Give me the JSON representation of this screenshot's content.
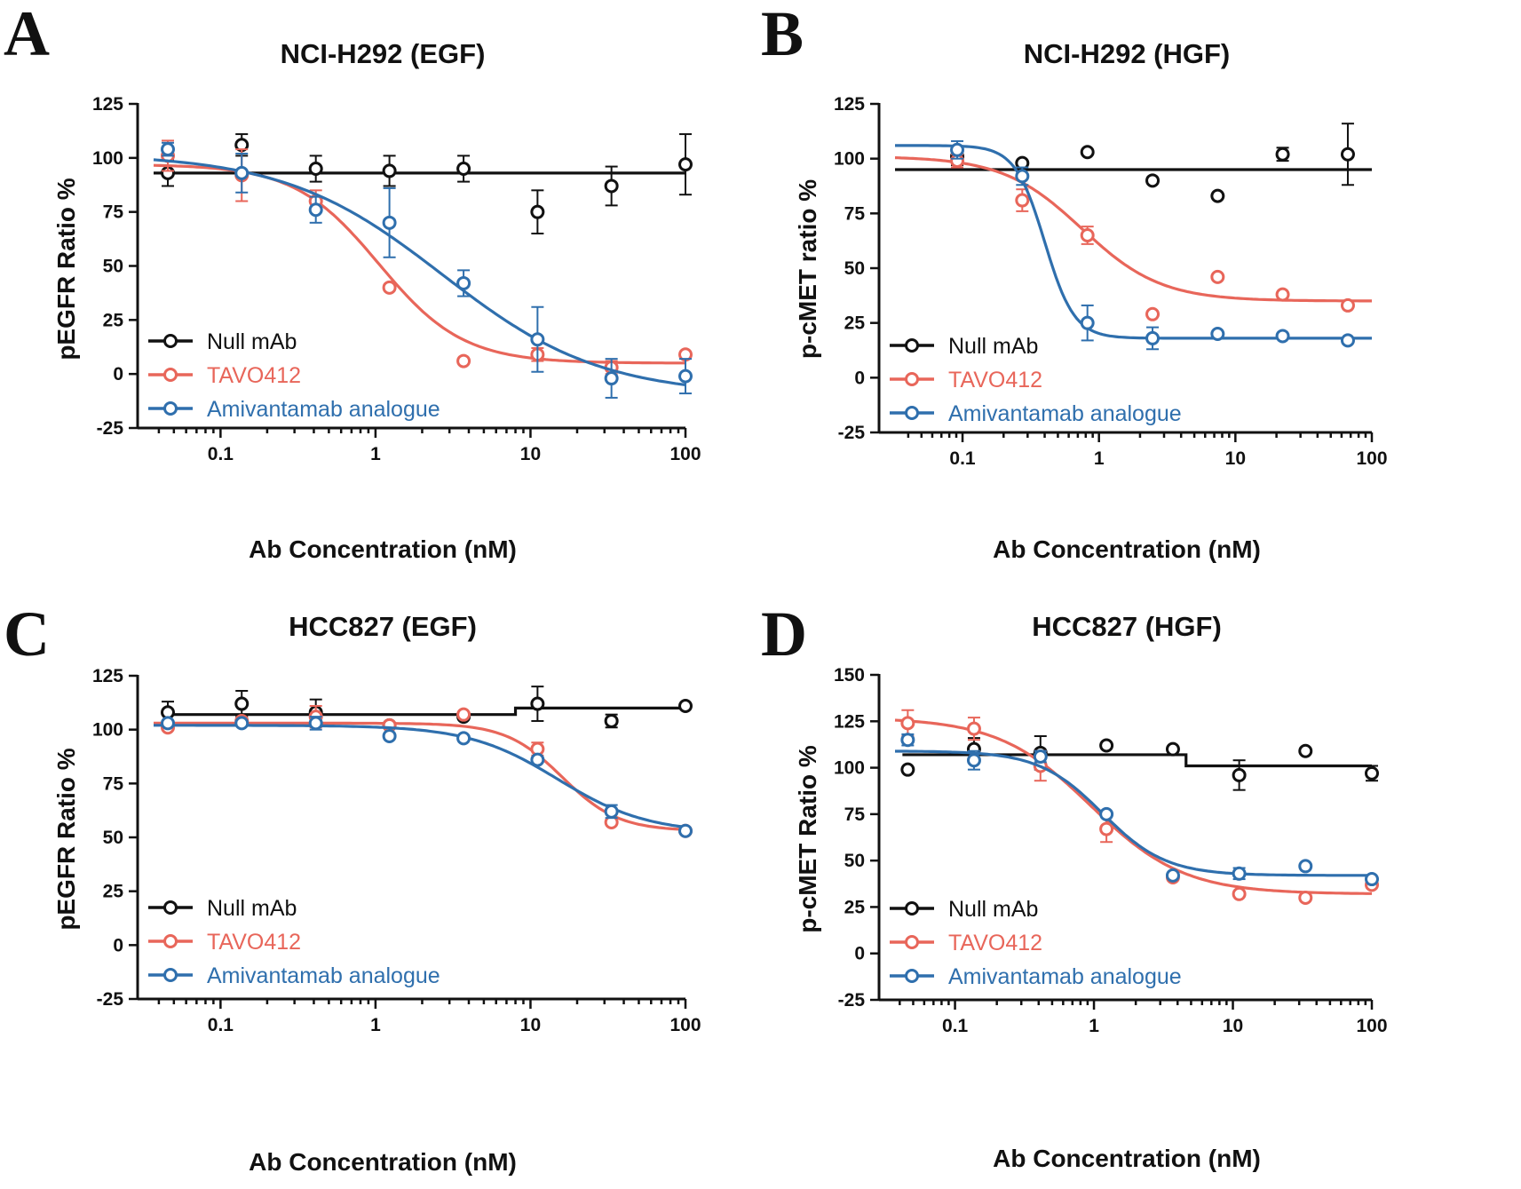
{
  "chart_data": [
    {
      "panel_letter": "A",
      "type": "scatter",
      "title": "NCI-H292 (EGF)",
      "xlabel": "Ab Concentration (nM)",
      "ylabel": "pEGFR Ratio %",
      "xscale": "log",
      "xlim": [
        0.037,
        100
      ],
      "ylim": [
        -25,
        125
      ],
      "xticks": [
        "0.1",
        "1",
        "10",
        "100"
      ],
      "yticks": [
        "-25",
        "0",
        "25",
        "50",
        "75",
        "100",
        "125"
      ],
      "legend_position": "lower-left",
      "series": [
        {
          "name": "Null mAb",
          "color": "#111111",
          "x": [
            0.0457,
            0.137,
            0.412,
            1.23,
            3.7,
            11.1,
            33.3,
            100
          ],
          "y": [
            93,
            106,
            95,
            94,
            95,
            75,
            87,
            97
          ],
          "err": [
            6,
            5,
            6,
            7,
            6,
            10,
            9,
            14
          ],
          "fit": {
            "kind": "flat",
            "level": 93
          }
        },
        {
          "name": "TAVO412",
          "color": "#e8665a",
          "x": [
            0.0457,
            0.137,
            0.412,
            1.23,
            3.7,
            11.1,
            33.3,
            100
          ],
          "y": [
            101,
            92,
            80,
            40,
            6,
            9,
            3,
            9
          ],
          "err": [
            7,
            12,
            5,
            2,
            2,
            3,
            3,
            2
          ],
          "fit": {
            "kind": "sigmoid",
            "top": 97,
            "bottom": 5,
            "ec50": 1.05,
            "hill": 1.6
          }
        },
        {
          "name": "Amivantamab analogue",
          "color": "#2f6fad",
          "x": [
            0.0457,
            0.137,
            0.412,
            1.23,
            3.7,
            11.1,
            33.3,
            100
          ],
          "y": [
            104,
            93,
            76,
            70,
            42,
            16,
            -2,
            -1
          ],
          "err": [
            3,
            9,
            6,
            16,
            6,
            15,
            9,
            8
          ],
          "fit": {
            "kind": "sigmoid",
            "top": 102,
            "bottom": -10,
            "ec50": 2.7,
            "hill": 0.85
          }
        }
      ]
    },
    {
      "panel_letter": "B",
      "type": "scatter",
      "title": "NCI-H292 (HGF)",
      "xlabel": "Ab Concentration (nM)",
      "ylabel": "p-cMET ratio %",
      "xscale": "log",
      "xlim": [
        0.032,
        100
      ],
      "ylim": [
        -25,
        125
      ],
      "xticks": [
        "0.1",
        "1",
        "10",
        "100"
      ],
      "yticks": [
        "-25",
        "0",
        "25",
        "50",
        "75",
        "100",
        "125"
      ],
      "legend_position": "lower-left",
      "series": [
        {
          "name": "Null mAb",
          "color": "#111111",
          "x": [
            0.0914,
            0.274,
            0.823,
            2.47,
            7.41,
            22.2,
            66.7
          ],
          "y": [
            101,
            98,
            103,
            90,
            83,
            102,
            102
          ],
          "err": [
            4,
            1,
            1,
            1,
            1,
            3,
            14
          ],
          "fit": {
            "kind": "flat",
            "level": 95
          }
        },
        {
          "name": "TAVO412",
          "color": "#e8665a",
          "x": [
            0.0914,
            0.274,
            0.823,
            2.47,
            7.41,
            22.2,
            66.7
          ],
          "y": [
            99,
            81,
            65,
            29,
            46,
            38,
            33
          ],
          "err": [
            3,
            5,
            4,
            1,
            1,
            1,
            1
          ],
          "fit": {
            "kind": "sigmoid",
            "top": 101,
            "bottom": 35,
            "ec50": 0.75,
            "hill": 1.5
          }
        },
        {
          "name": "Amivantamab analogue",
          "color": "#2f6fad",
          "x": [
            0.0914,
            0.274,
            0.823,
            2.47,
            7.41,
            22.2,
            66.7
          ],
          "y": [
            104,
            92,
            25,
            18,
            20,
            19,
            17
          ],
          "err": [
            4,
            4,
            8,
            5,
            1,
            1,
            1
          ],
          "fit": {
            "kind": "sigmoid",
            "top": 106,
            "bottom": 18,
            "ec50": 0.4,
            "hill": 4
          }
        }
      ]
    },
    {
      "panel_letter": "C",
      "type": "scatter",
      "title": "HCC827 (EGF)",
      "xlabel": "Ab Concentration (nM)",
      "ylabel": "pEGFR Ratio %",
      "xscale": "log",
      "xlim": [
        0.037,
        100
      ],
      "ylim": [
        -25,
        125
      ],
      "xticks": [
        "0.1",
        "1",
        "10",
        "100"
      ],
      "yticks": [
        "-25",
        "0",
        "25",
        "50",
        "75",
        "100",
        "125"
      ],
      "legend_position": "lower-left",
      "series": [
        {
          "name": "Null mAb",
          "color": "#111111",
          "x": [
            0.0457,
            0.137,
            0.412,
            1.23,
            3.7,
            11.1,
            33.3,
            100
          ],
          "y": [
            108,
            112,
            108,
            102,
            106,
            112,
            104,
            111
          ],
          "err": [
            5,
            6,
            6,
            2,
            2,
            8,
            3,
            2
          ],
          "fit": {
            "kind": "step",
            "levels": [
              107,
              110
            ],
            "step_x": 8
          }
        },
        {
          "name": "TAVO412",
          "color": "#e8665a",
          "x": [
            0.0457,
            0.137,
            0.412,
            1.23,
            3.7,
            11.1,
            33.3,
            100
          ],
          "y": [
            101,
            104,
            106,
            102,
            107,
            91,
            57,
            53
          ],
          "err": [
            2,
            1,
            5,
            1,
            2,
            3,
            1,
            1
          ],
          "fit": {
            "kind": "sigmoid",
            "top": 103,
            "bottom": 53,
            "ec50": 16,
            "hill": 2.4
          }
        },
        {
          "name": "Amivantamab analogue",
          "color": "#2f6fad",
          "x": [
            0.0457,
            0.137,
            0.412,
            1.23,
            3.7,
            11.1,
            33.3,
            100
          ],
          "y": [
            103,
            103,
            103,
            97,
            96,
            86,
            62,
            53
          ],
          "err": [
            2,
            1,
            3,
            1,
            1,
            1,
            3,
            1
          ],
          "fit": {
            "kind": "sigmoid",
            "top": 102,
            "bottom": 52,
            "ec50": 15,
            "hill": 1.5
          }
        }
      ]
    },
    {
      "panel_letter": "D",
      "type": "scatter",
      "title": "HCC827 (HGF)",
      "xlabel": "Ab Concentration (nM)",
      "ylabel": "p-cMET Ratio %",
      "xscale": "log",
      "xlim": [
        0.037,
        100
      ],
      "ylim": [
        -25,
        150
      ],
      "xticks": [
        "0.1",
        "1",
        "10",
        "100"
      ],
      "yticks": [
        "-25",
        "0",
        "25",
        "50",
        "75",
        "100",
        "125",
        "150"
      ],
      "legend_position": "lower-left",
      "series": [
        {
          "name": "Null mAb",
          "color": "#111111",
          "x": [
            0.0457,
            0.137,
            0.412,
            1.23,
            3.7,
            11.1,
            33.3,
            100
          ],
          "y": [
            99,
            110,
            108,
            112,
            110,
            96,
            109,
            97
          ],
          "err": [
            2,
            6,
            9,
            1,
            1,
            8,
            2,
            4
          ],
          "fit": {
            "kind": "step",
            "levels": [
              107,
              101
            ],
            "step_x": 4.6
          }
        },
        {
          "name": "TAVO412",
          "color": "#e8665a",
          "x": [
            0.0457,
            0.137,
            0.412,
            1.23,
            3.7,
            11.1,
            33.3,
            100
          ],
          "y": [
            124,
            121,
            101,
            67,
            41,
            32,
            30,
            37
          ],
          "err": [
            7,
            6,
            8,
            7,
            2,
            1,
            1,
            1
          ],
          "fit": {
            "kind": "sigmoid",
            "top": 127,
            "bottom": 32,
            "ec50": 0.95,
            "hill": 1.3
          }
        },
        {
          "name": "Amivantamab analogue",
          "color": "#2f6fad",
          "x": [
            0.0457,
            0.137,
            0.412,
            1.23,
            3.7,
            11.1,
            33.3,
            100
          ],
          "y": [
            115,
            104,
            106,
            75,
            42,
            43,
            47,
            40
          ],
          "err": [
            3,
            5,
            3,
            2,
            2,
            3,
            1,
            1
          ],
          "fit": {
            "kind": "sigmoid",
            "top": 109,
            "bottom": 42,
            "ec50": 1.15,
            "hill": 1.9
          }
        }
      ]
    }
  ]
}
